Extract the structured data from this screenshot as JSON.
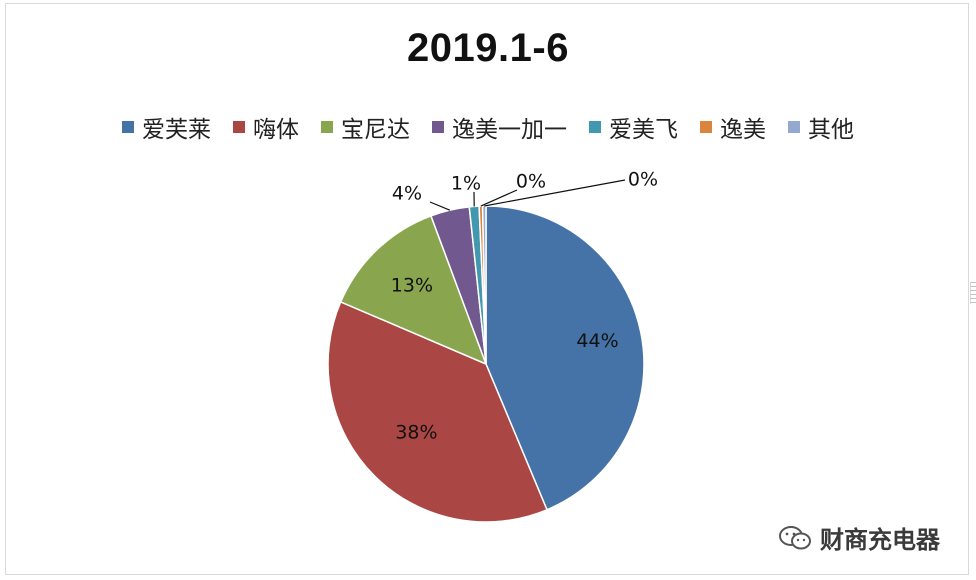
{
  "chart_data": {
    "type": "pie",
    "title": "2019.1-6",
    "legend_position": "top",
    "categories": [
      "爱芙莱",
      "嗨体",
      "宝尼达",
      "逸美一加一",
      "爱美飞",
      "逸美",
      "其他"
    ],
    "values": [
      44,
      38,
      13,
      4,
      1,
      0,
      0
    ],
    "value_labels": [
      "44%",
      "38%",
      "13%",
      "4%",
      "1%",
      "0%",
      "0%"
    ],
    "colors": [
      "#4572a7",
      "#aa4643",
      "#89a54e",
      "#71588f",
      "#4198af",
      "#db843d",
      "#93a9cf"
    ]
  },
  "watermark": {
    "text": "财商充电器",
    "icon": "wechat-icon"
  }
}
